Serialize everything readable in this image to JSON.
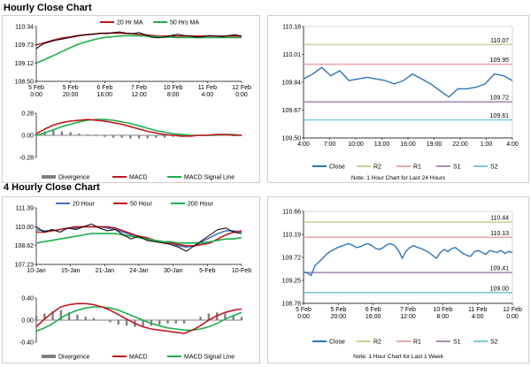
{
  "sections": {
    "hourly_title": "Hourly Close Chart",
    "four_hourly_title": "4 Hourly Close Chart"
  },
  "notes": {
    "hourly": "Note: 1 Hour Chart for Last 24 Hours",
    "four_hourly": "Note: 1 Hour Chart for Last 1 Week"
  },
  "colors": {
    "price": "#000000",
    "ma_red": "#c0171f",
    "ma_green": "#1fae4b",
    "ma_blue": "#4472c4",
    "histogram": "#808080",
    "close": "#2e75b6",
    "r2": "#c5d39a",
    "r1": "#e5a8ab",
    "s1": "#a78fb8",
    "s2": "#7fc7dd"
  },
  "chart_data": [
    {
      "id": "hourly_price",
      "type": "line",
      "legend": [
        "20 Hr MA",
        "50 Hrs MA"
      ],
      "yticks": [
        "110.34",
        "109.73",
        "109.12",
        "108.50"
      ],
      "ylim": [
        108.5,
        110.34
      ],
      "xticks": [
        "5 Feb\n0:00",
        "5 Feb\n20:00",
        "6 Feb\n16:00",
        "7 Feb\n12:00",
        "10 Feb\n8:00",
        "11 Feb\n4:00",
        "12 Feb\n0:00"
      ],
      "series": [
        {
          "name": "Price",
          "values": [
            109.6,
            109.75,
            109.82,
            109.88,
            109.92,
            109.96,
            110.0,
            110.04,
            110.06,
            110.08,
            110.12,
            110.1,
            110.14,
            110.16,
            110.12,
            110.1,
            110.14,
            110.06,
            109.98,
            109.96,
            109.98,
            110.04,
            110.08,
            110.04,
            110.02,
            109.98,
            110.0,
            110.04,
            110.02,
            110.0,
            110.04,
            110.06,
            110.02
          ]
        },
        {
          "name": "20 Hr MA",
          "values": [
            109.72,
            109.78,
            109.84,
            109.9,
            109.95,
            109.98,
            110.02,
            110.05,
            110.07,
            110.09,
            110.11,
            110.12,
            110.12,
            110.12,
            110.11,
            110.1,
            110.08,
            110.06,
            110.04,
            110.02,
            110.02,
            110.02,
            110.02,
            110.02,
            110.02,
            110.02,
            110.02,
            110.02,
            110.02,
            110.02,
            110.02,
            110.02,
            110.02
          ]
        },
        {
          "name": "50 Hrs MA",
          "values": [
            109.12,
            109.2,
            109.3,
            109.4,
            109.5,
            109.6,
            109.7,
            109.78,
            109.84,
            109.9,
            109.95,
            109.98,
            110.0,
            110.02,
            110.03,
            110.03,
            110.03,
            110.02,
            110.01,
            110.0,
            109.99,
            109.98,
            109.97,
            109.97,
            109.97,
            109.97,
            109.97,
            109.97,
            109.97,
            109.97,
            109.97,
            109.97,
            109.97
          ]
        }
      ]
    },
    {
      "id": "hourly_macd",
      "type": "line",
      "legend": [
        "Divergence",
        "MACD",
        "MACD Signal Line"
      ],
      "yticks": [
        "0.28",
        "0.00",
        "-0.28"
      ],
      "ylim": [
        -0.28,
        0.28
      ],
      "series": [
        {
          "name": "MACD",
          "values": [
            0.02,
            0.08,
            0.13,
            0.16,
            0.18,
            0.19,
            0.2,
            0.19,
            0.18,
            0.16,
            0.14,
            0.11,
            0.08,
            0.05,
            0.03,
            0.01,
            0.0,
            -0.01,
            -0.01,
            0.0,
            0.0,
            0.01,
            0.01,
            0.0,
            0.0
          ]
        },
        {
          "name": "MACD Signal Line",
          "values": [
            0.0,
            0.03,
            0.07,
            0.11,
            0.14,
            0.17,
            0.19,
            0.2,
            0.2,
            0.19,
            0.17,
            0.15,
            0.12,
            0.09,
            0.06,
            0.04,
            0.02,
            0.01,
            0.0,
            0.0,
            0.0,
            0.0,
            0.01,
            0.01,
            0.0
          ]
        },
        {
          "name": "Divergence",
          "values": [
            0.02,
            0.05,
            0.06,
            0.05,
            0.04,
            0.02,
            0.01,
            -0.01,
            -0.02,
            -0.03,
            -0.03,
            -0.04,
            -0.04,
            -0.04,
            -0.03,
            -0.03,
            -0.02,
            -0.02,
            -0.01,
            0.0,
            0.0,
            0.01,
            0.0,
            -0.01,
            0.0
          ]
        }
      ]
    },
    {
      "id": "hourly_levels",
      "type": "line",
      "legend": [
        "Close",
        "R2",
        "R1",
        "S1",
        "S2"
      ],
      "yticks": [
        "110.18",
        "110.01",
        "109.84",
        "109.67",
        "109.50"
      ],
      "ylim": [
        109.5,
        110.18
      ],
      "xticks": [
        "4:00",
        "7:00",
        "10:00",
        "13:00",
        "16:00",
        "19:00",
        "22:00",
        "1:00",
        "4:00"
      ],
      "levels": {
        "R2": 110.07,
        "R1": 109.95,
        "S1": 109.72,
        "S2": 109.61
      },
      "level_labels": {
        "R2": "110.07",
        "R1": "109.95",
        "S1": "109.72",
        "S2": "109.61"
      },
      "series": [
        {
          "name": "Close",
          "values": [
            109.86,
            109.89,
            109.93,
            109.88,
            109.91,
            109.85,
            109.86,
            109.87,
            109.86,
            109.85,
            109.83,
            109.85,
            109.89,
            109.86,
            109.83,
            109.79,
            109.75,
            109.8,
            109.8,
            109.81,
            109.83,
            109.89,
            109.88,
            109.85
          ]
        }
      ]
    },
    {
      "id": "four_hourly_price",
      "type": "line",
      "legend": [
        "20 Hour",
        "50 Hour",
        "200 Hour"
      ],
      "yticks": [
        "111.39",
        "110.00",
        "108.62",
        "107.23"
      ],
      "ylim": [
        107.23,
        111.39
      ],
      "xticks": [
        "10-Jan",
        "15-Jan",
        "21-Jan",
        "24-Jan",
        "30-Jan",
        "5-Feb",
        "10-Feb"
      ],
      "series": [
        {
          "name": "Price",
          "values": [
            110.0,
            109.6,
            109.8,
            109.6,
            109.9,
            109.8,
            110.0,
            110.2,
            109.9,
            109.7,
            109.8,
            109.4,
            109.1,
            109.3,
            109.0,
            108.9,
            108.8,
            108.7,
            108.5,
            108.2,
            108.6,
            109.0,
            109.4,
            109.8,
            109.9,
            109.6,
            109.5
          ]
        },
        {
          "name": "20 Hour",
          "values": [
            109.8,
            109.7,
            109.7,
            109.8,
            109.9,
            109.9,
            110.0,
            110.0,
            110.0,
            109.9,
            109.8,
            109.6,
            109.4,
            109.2,
            109.1,
            109.0,
            108.9,
            108.8,
            108.6,
            108.5,
            108.6,
            108.9,
            109.2,
            109.5,
            109.7,
            109.7,
            109.6
          ]
        },
        {
          "name": "50 Hour",
          "values": [
            109.6,
            109.6,
            109.7,
            109.8,
            109.9,
            110.0,
            110.0,
            110.0,
            110.0,
            110.0,
            109.9,
            109.7,
            109.5,
            109.3,
            109.2,
            109.0,
            108.9,
            108.8,
            108.7,
            108.6,
            108.6,
            108.7,
            108.8,
            109.1,
            109.4,
            109.6,
            109.7
          ]
        },
        {
          "name": "200 Hour",
          "values": [
            108.8,
            108.9,
            109.0,
            109.1,
            109.2,
            109.3,
            109.4,
            109.5,
            109.5,
            109.5,
            109.5,
            109.4,
            109.3,
            109.2,
            109.1,
            109.0,
            108.9,
            108.9,
            108.8,
            108.8,
            108.8,
            108.8,
            108.9,
            109.0,
            109.1,
            109.1,
            109.2
          ]
        }
      ]
    },
    {
      "id": "four_hourly_macd",
      "type": "line",
      "legend": [
        "Divergence",
        "MACD",
        "MACD Signal Line"
      ],
      "yticks": [
        "0.40",
        "0.00",
        "-0.40"
      ],
      "ylim": [
        -0.4,
        0.4
      ],
      "series": [
        {
          "name": "MACD",
          "values": [
            -0.12,
            0.02,
            0.14,
            0.24,
            0.28,
            0.3,
            0.3,
            0.28,
            0.24,
            0.18,
            0.1,
            0.02,
            -0.06,
            -0.12,
            -0.16,
            -0.18,
            -0.2,
            -0.22,
            -0.24,
            -0.18,
            -0.1,
            0.0,
            0.08,
            0.14,
            0.18,
            0.2
          ]
        },
        {
          "name": "MACD Signal Line",
          "values": [
            -0.2,
            -0.14,
            -0.06,
            0.04,
            0.12,
            0.18,
            0.22,
            0.24,
            0.24,
            0.22,
            0.18,
            0.12,
            0.06,
            0.0,
            -0.06,
            -0.1,
            -0.14,
            -0.16,
            -0.18,
            -0.18,
            -0.16,
            -0.12,
            -0.06,
            0.02,
            0.08,
            0.14
          ]
        },
        {
          "name": "Divergence",
          "values": [
            0.08,
            0.12,
            0.16,
            0.18,
            0.14,
            0.1,
            0.06,
            0.04,
            0.0,
            -0.04,
            -0.08,
            -0.1,
            -0.12,
            -0.12,
            -0.1,
            -0.08,
            -0.06,
            -0.06,
            -0.06,
            0.0,
            0.06,
            0.12,
            0.14,
            0.12,
            0.1,
            0.06
          ]
        }
      ]
    },
    {
      "id": "four_hourly_levels",
      "type": "line",
      "legend": [
        "Close",
        "R2",
        "R1",
        "S1",
        "S2"
      ],
      "yticks": [
        "110.66",
        "110.19",
        "109.72",
        "109.25",
        "108.78"
      ],
      "ylim": [
        108.78,
        110.66
      ],
      "xticks": [
        "5 Feb\n0:00",
        "5 Feb\n20:00",
        "6 Feb\n16:00",
        "7 Feb\n12:00",
        "10 Feb\n8:00",
        "11 Feb\n4:00",
        "12 Feb\n0:00"
      ],
      "levels": {
        "R2": 110.44,
        "R1": 110.13,
        "S1": 109.41,
        "S2": 109.0
      },
      "level_labels": {
        "R2": "110.44",
        "R1": "110.13",
        "S1": "109.41",
        "S2": "109.00"
      },
      "series": [
        {
          "name": "Close",
          "values": [
            109.42,
            109.4,
            109.35,
            109.55,
            109.62,
            109.7,
            109.78,
            109.84,
            109.88,
            109.92,
            109.95,
            109.98,
            110.0,
            109.96,
            109.92,
            109.94,
            109.98,
            110.0,
            109.96,
            109.9,
            109.88,
            109.92,
            109.98,
            110.0,
            109.96,
            109.86,
            109.7,
            109.85,
            109.92,
            109.96,
            109.92,
            109.9,
            109.86,
            109.82,
            109.76,
            109.7,
            109.82,
            109.88,
            109.84,
            109.9,
            109.92,
            109.86,
            109.8,
            109.76,
            109.74,
            109.84,
            109.86,
            109.82,
            109.78,
            109.86,
            109.84,
            109.82,
            109.86,
            109.8,
            109.84,
            109.82
          ]
        }
      ]
    }
  ]
}
